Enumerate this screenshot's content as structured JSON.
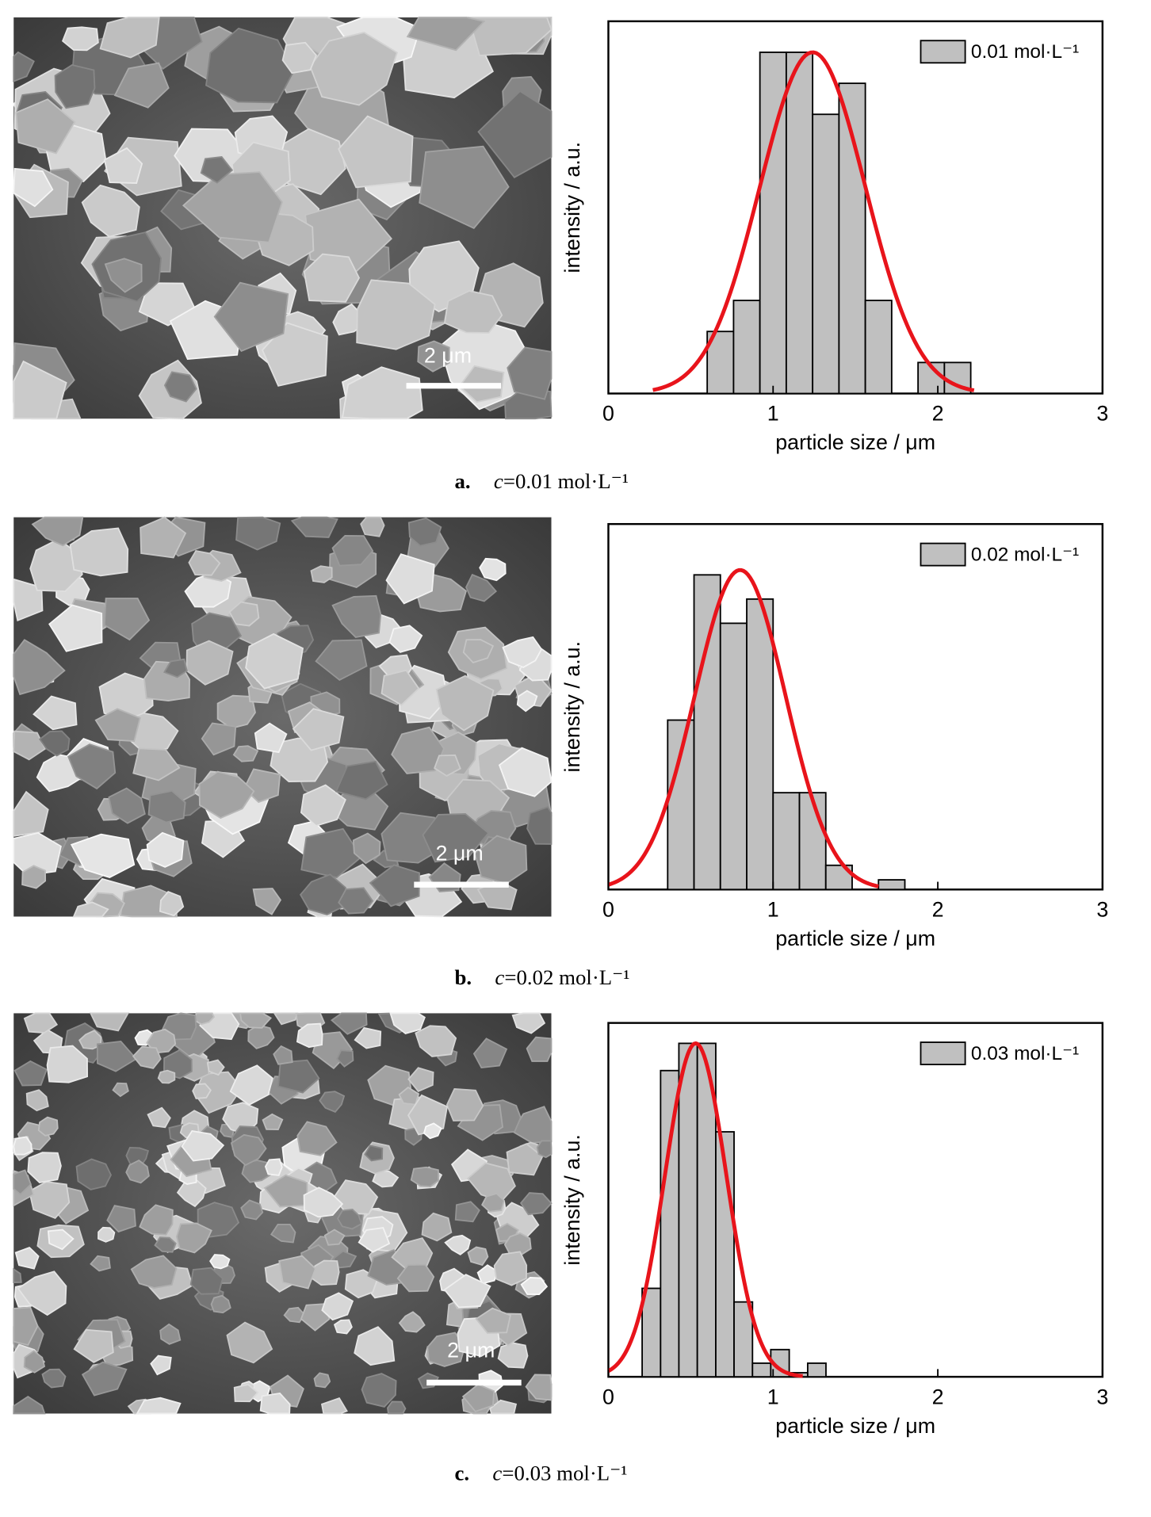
{
  "chart_data": [
    {
      "type": "histogram",
      "xlabel": "particle size / μm",
      "ylabel": "intensity / a.u.",
      "xlim": [
        0,
        3
      ],
      "xticks": [
        0,
        1,
        2,
        3
      ],
      "ylim": [
        0,
        12
      ],
      "bins": [
        0.6,
        0.76,
        0.92,
        1.08,
        1.24,
        1.4,
        1.56,
        1.72,
        1.88,
        2.04,
        2.2
      ],
      "series": [
        {
          "name": "0.01 mol·L⁻¹",
          "color": "#c0c0c0",
          "values": [
            2,
            3,
            11,
            11,
            9,
            10,
            3,
            0,
            1,
            1
          ]
        }
      ],
      "fit": {
        "color": "#e8141b",
        "center": 1.24,
        "amplitude": 11,
        "sigma": 0.32,
        "xrange": [
          0.27,
          2.22
        ]
      }
    },
    {
      "type": "histogram",
      "xlabel": "particle size / μm",
      "ylabel": "intensity / a.u.",
      "xlim": [
        0,
        3
      ],
      "xticks": [
        0,
        1,
        2,
        3
      ],
      "ylim": [
        0,
        15.1
      ],
      "bins": [
        0.36,
        0.52,
        0.68,
        0.84,
        1.0,
        1.16,
        1.32,
        1.48,
        1.64,
        1.8
      ],
      "series": [
        {
          "name": "0.02 mol·L⁻¹",
          "color": "#c0c0c0",
          "values": [
            7,
            13,
            11,
            12,
            4,
            4,
            1,
            0,
            0.4
          ]
        }
      ],
      "fit": {
        "color": "#e8141b",
        "center": 0.8,
        "amplitude": 13.2,
        "sigma": 0.276,
        "xrange": [
          0,
          1.64
        ]
      }
    },
    {
      "type": "histogram",
      "xlabel": "particle size / μm",
      "ylabel": "intensity / a.u.",
      "xlim": [
        0,
        3
      ],
      "xticks": [
        0,
        1,
        2,
        3
      ],
      "ylim": [
        0,
        26
      ],
      "bins": [
        0.205,
        0.317,
        0.428,
        0.54,
        0.652,
        0.763,
        0.875,
        0.986,
        1.098,
        1.21,
        1.321
      ],
      "series": [
        {
          "name": "0.03 mol·L⁻¹",
          "color": "#c0c0c0",
          "values": [
            6.5,
            22.5,
            24.5,
            24.5,
            18,
            5.5,
            1,
            2,
            0.3,
            1
          ]
        }
      ],
      "fit": {
        "color": "#e8141b",
        "center": 0.53,
        "amplitude": 24.5,
        "sigma": 0.186,
        "xrange": [
          0,
          1.18
        ]
      }
    }
  ],
  "panels": [
    {
      "scale_bar": "2 μm",
      "label": "a.",
      "caption_var": "c",
      "caption_text": "=0.01 mol·L⁻¹"
    },
    {
      "scale_bar": "2 μm",
      "label": "b.",
      "caption_var": "c",
      "caption_text": "=0.02 mol·L⁻¹"
    },
    {
      "scale_bar": "2 μm",
      "label": "c.",
      "caption_var": "c",
      "caption_text": "=0.03 mol·L⁻¹"
    }
  ]
}
